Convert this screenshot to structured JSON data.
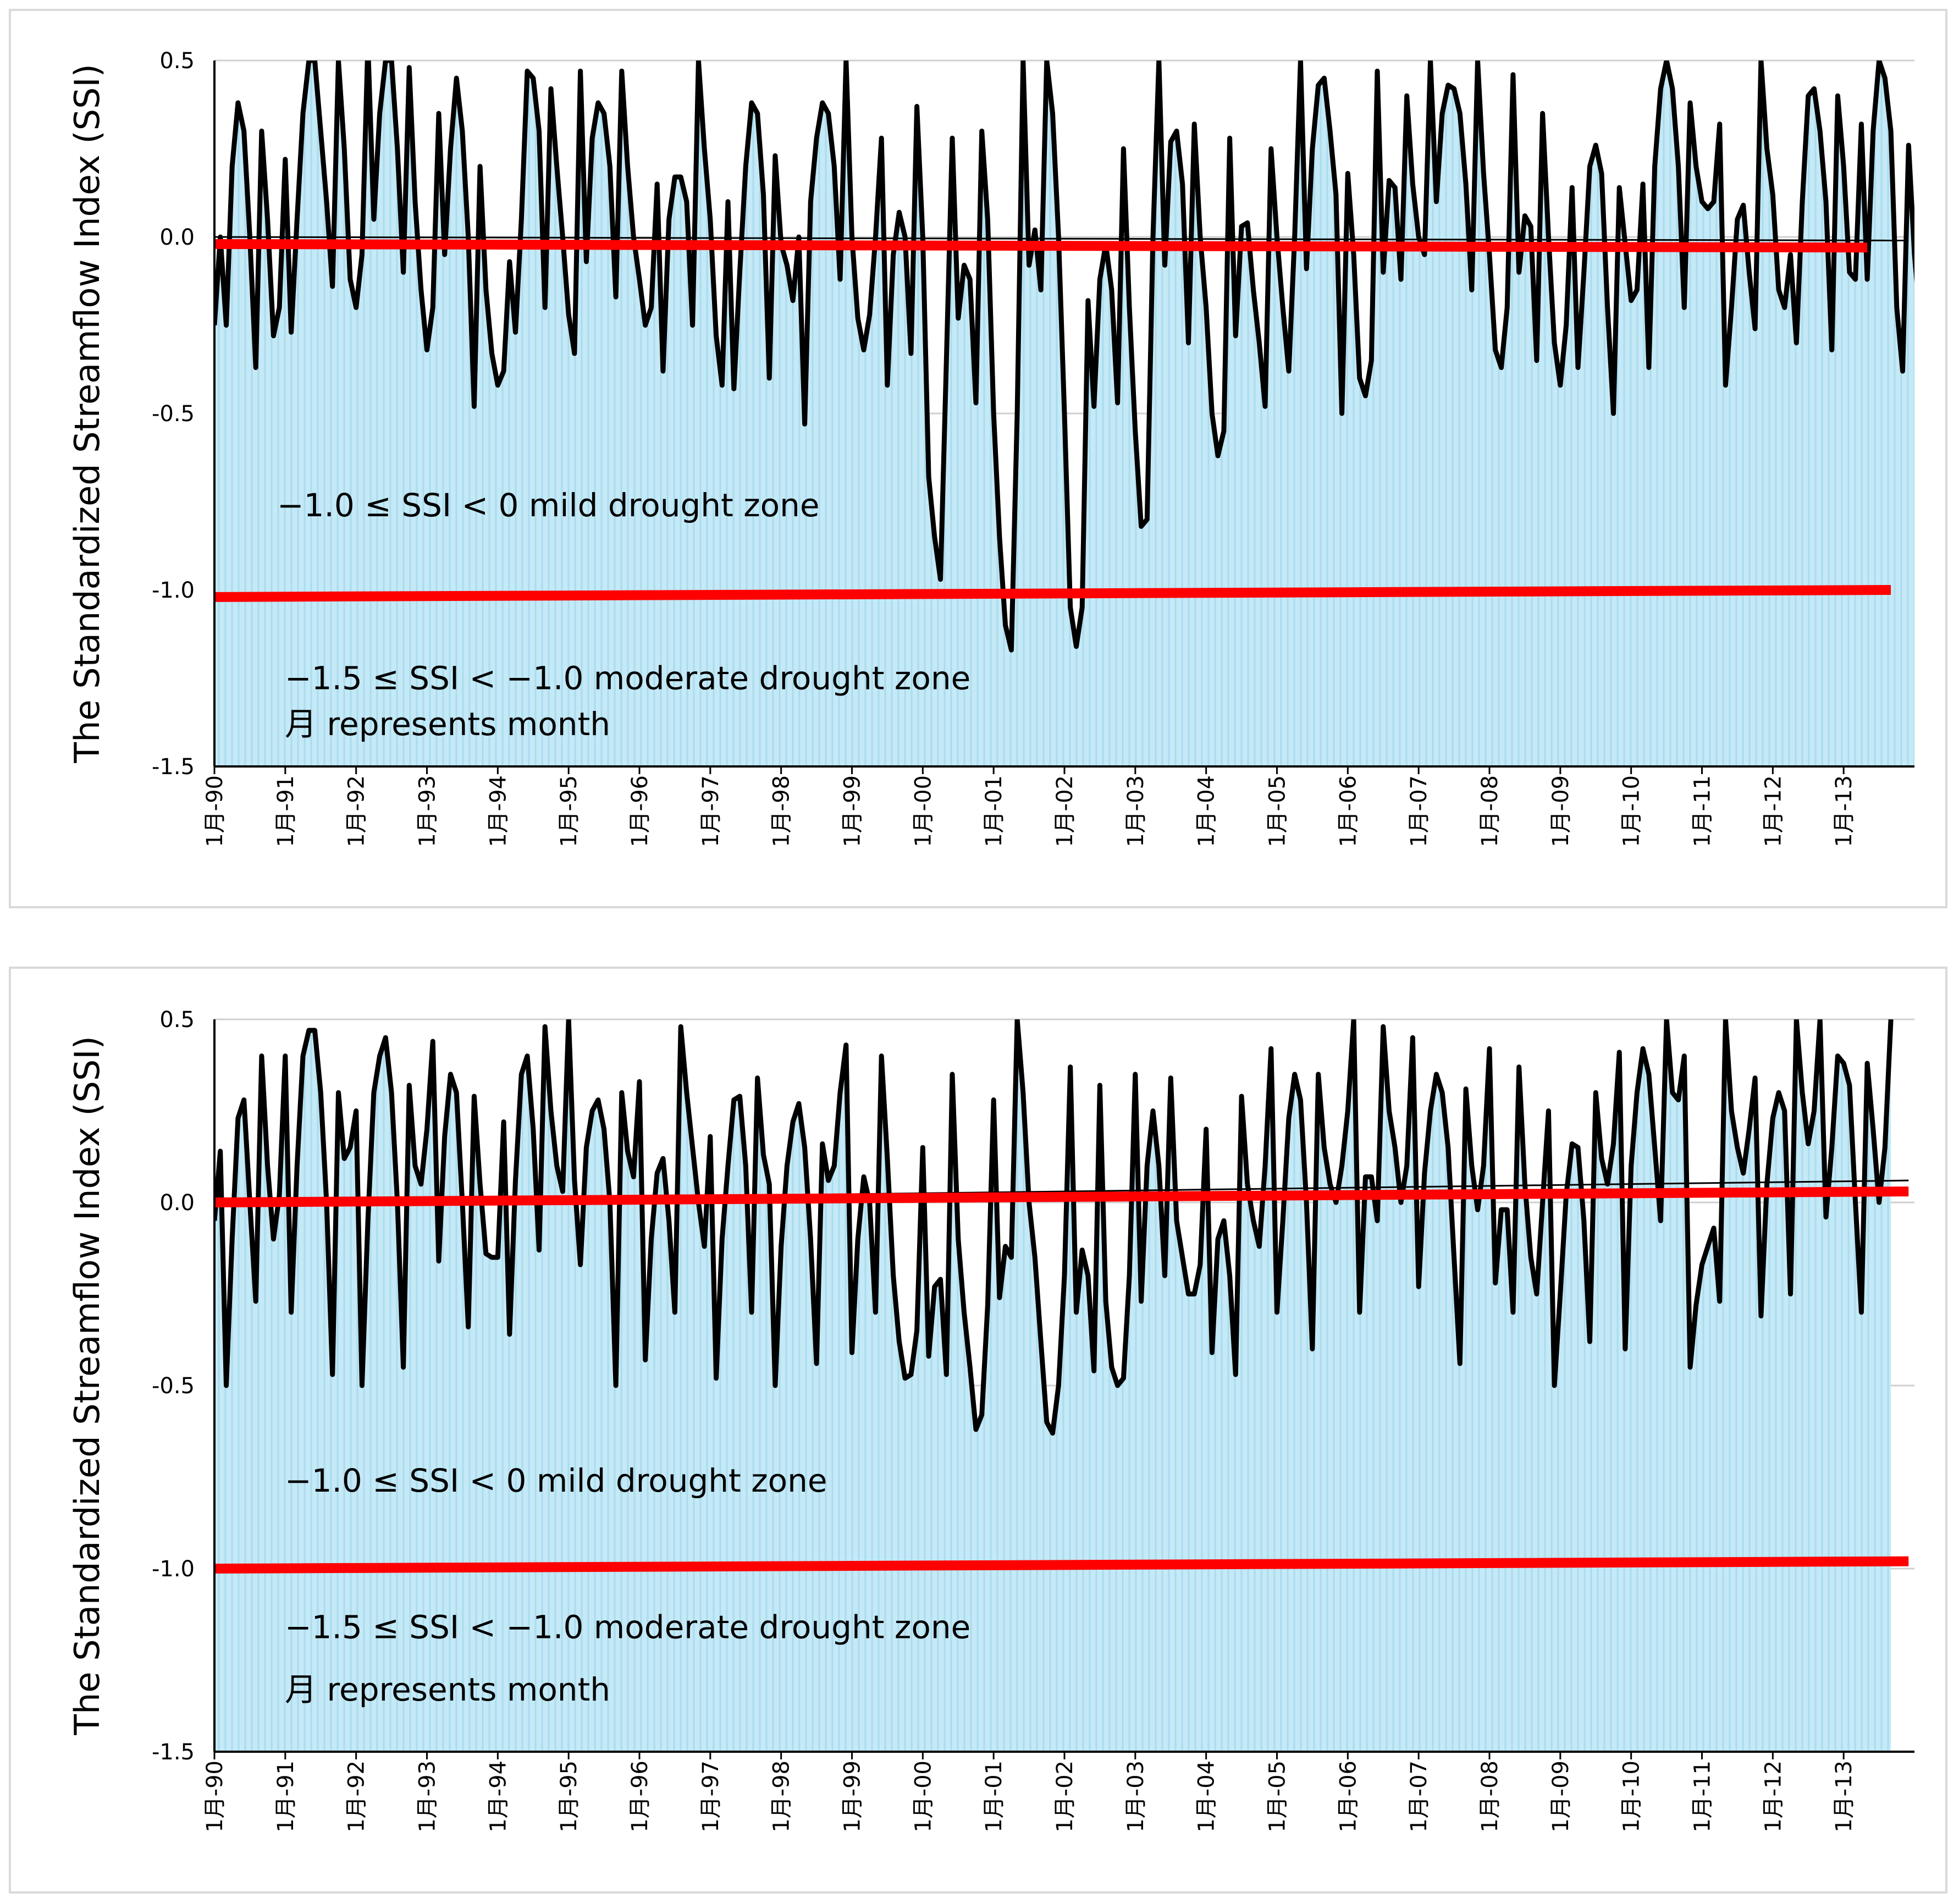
{
  "colors": {
    "area_fill": "#c5e9f6",
    "area_stripe": "#a9dcef",
    "grid": "#d0d0d0",
    "series_line": "#000000",
    "threshold_line": "#ff0000",
    "frame_border": "#d9d9d9"
  },
  "chart_data": [
    {
      "type": "line",
      "ylabel": "The Standardized Streamflow Index (SSI)",
      "xlabel": "",
      "ylim": [
        -1.5,
        0.5
      ],
      "yticks": [
        "0.5",
        "0.0",
        "-0.5",
        "-1.0",
        "-1.5"
      ],
      "x_start": "1990-01",
      "x_tick_labels": [
        "1月-90",
        "1月-91",
        "1月-92",
        "1月-93",
        "1月-94",
        "1月-95",
        "1月-96",
        "1月-97",
        "1月-98",
        "1月-99",
        "1月-00",
        "1月-01",
        "1月-02",
        "1月-03",
        "1月-04",
        "1月-05",
        "1月-06",
        "1月-07",
        "1月-08",
        "1月-09",
        "1月-10",
        "1月-11",
        "1月-12",
        "1月-13"
      ],
      "annotations": [
        {
          "text": "−1.0 ≤ SSI < 0 mild drought zone",
          "value": -0.76
        },
        {
          "text": "−1.5 ≤ SSI < −1.0 moderate drought zone",
          "value": -1.25
        },
        {
          "text": "月  represents month",
          "value": -1.38
        }
      ],
      "thresholds": [
        {
          "name": "",
          "start": "1990-01",
          "end": "2013-05",
          "values": [
            -0.02,
            -0.03
          ]
        },
        {
          "name": "",
          "start": "1990-01",
          "end": "2013-09",
          "values": [
            -1.02,
            -1.0
          ]
        }
      ],
      "trend": {
        "start": "1990-01",
        "end": "2013-12",
        "values": [
          0.0,
          -0.01
        ]
      },
      "series": [
        {
          "name": "",
          "values": [
            -0.25,
            0.0,
            -0.25,
            0.2,
            0.38,
            0.3,
            0.0,
            -0.37,
            0.3,
            0.05,
            -0.28,
            -0.2,
            0.22,
            -0.27,
            0.05,
            0.35,
            0.5,
            0.5,
            0.3,
            0.1,
            -0.14,
            0.5,
            0.25,
            -0.12,
            -0.2,
            -0.05,
            0.55,
            0.05,
            0.35,
            0.5,
            0.5,
            0.25,
            -0.1,
            0.48,
            0.1,
            -0.15,
            -0.32,
            -0.2,
            0.35,
            -0.05,
            0.25,
            0.45,
            0.3,
            0.0,
            -0.48,
            0.2,
            -0.15,
            -0.33,
            -0.42,
            -0.38,
            -0.07,
            -0.27,
            0.05,
            0.47,
            0.45,
            0.3,
            -0.2,
            0.42,
            0.2,
            0.0,
            -0.22,
            -0.33,
            0.47,
            -0.07,
            0.28,
            0.38,
            0.35,
            0.2,
            -0.17,
            0.47,
            0.2,
            0.0,
            -0.12,
            -0.25,
            -0.2,
            0.15,
            -0.38,
            0.05,
            0.17,
            0.17,
            0.1,
            -0.25,
            0.5,
            0.25,
            0.05,
            -0.28,
            -0.42,
            0.1,
            -0.43,
            -0.1,
            0.2,
            0.38,
            0.35,
            0.12,
            -0.4,
            0.23,
            -0.02,
            -0.08,
            -0.18,
            0.0,
            -0.53,
            0.1,
            0.28,
            0.38,
            0.35,
            0.2,
            -0.12,
            0.5,
            0.0,
            -0.23,
            -0.32,
            -0.22,
            0.0,
            0.28,
            -0.42,
            -0.05,
            0.07,
            0.0,
            -0.33,
            0.37,
            0.0,
            -0.68,
            -0.85,
            -0.97,
            -0.35,
            0.28,
            -0.23,
            -0.08,
            -0.12,
            -0.47,
            0.3,
            0.05,
            -0.5,
            -0.85,
            -1.1,
            -1.17,
            -0.5,
            0.5,
            -0.08,
            0.02,
            -0.15,
            0.5,
            0.35,
            0.0,
            -0.5,
            -1.05,
            -1.16,
            -1.05,
            -0.18,
            -0.48,
            -0.12,
            -0.02,
            -0.15,
            -0.47,
            0.25,
            -0.2,
            -0.55,
            -0.82,
            -0.8,
            0.0,
            0.5,
            -0.08,
            0.27,
            0.3,
            0.15,
            -0.3,
            0.32,
            0.0,
            -0.2,
            -0.5,
            -0.62,
            -0.55,
            0.28,
            -0.28,
            0.03,
            0.04,
            -0.15,
            -0.3,
            -0.48,
            0.25,
            0.0,
            -0.2,
            -0.38,
            0.0,
            0.5,
            -0.09,
            0.25,
            0.43,
            0.45,
            0.3,
            0.12,
            -0.5,
            0.18,
            -0.05,
            -0.4,
            -0.45,
            -0.35,
            0.47,
            -0.1,
            0.16,
            0.14,
            -0.12,
            0.4,
            0.15,
            0.0,
            -0.05,
            0.5,
            0.1,
            0.35,
            0.43,
            0.42,
            0.35,
            0.15,
            -0.15,
            0.5,
            0.18,
            -0.05,
            -0.32,
            -0.37,
            -0.2,
            0.46,
            -0.1,
            0.06,
            0.03,
            -0.35,
            0.35,
            0.0,
            -0.3,
            -0.42,
            -0.25,
            0.14,
            -0.37,
            -0.1,
            0.2,
            0.26,
            0.18,
            -0.2,
            -0.5,
            0.14,
            -0.02,
            -0.18,
            -0.15,
            0.15,
            -0.37,
            0.2,
            0.42,
            0.5,
            0.42,
            0.2,
            -0.2,
            0.38,
            0.2,
            0.1,
            0.08,
            0.1,
            0.32,
            -0.42,
            -0.2,
            0.05,
            0.09,
            -0.1,
            -0.26,
            0.5,
            0.25,
            0.12,
            -0.15,
            -0.2,
            -0.05,
            -0.3,
            0.1,
            0.4,
            0.42,
            0.3,
            0.1,
            -0.32,
            0.4,
            0.2,
            -0.1,
            -0.12,
            0.32,
            -0.12,
            0.3,
            0.5,
            0.45,
            0.3,
            -0.2,
            -0.38,
            0.26,
            -0.05,
            -0.24,
            -0.2,
            0.35
          ]
        }
      ]
    },
    {
      "type": "line",
      "ylabel": "The Standardized Streamflow Index (SSI)",
      "xlabel": "",
      "ylim": [
        -1.5,
        0.5
      ],
      "yticks": [
        "0.5",
        "0.0",
        "-0.5",
        "-1.0",
        "-1.5"
      ],
      "x_start": "1990-01",
      "x_tick_labels": [
        "1月-90",
        "1月-91",
        "1月-92",
        "1月-93",
        "1月-94",
        "1月-95",
        "1月-96",
        "1月-97",
        "1月-98",
        "1月-99",
        "1月-00",
        "1月-01",
        "1月-02",
        "1月-03",
        "1月-04",
        "1月-05",
        "1月-06",
        "1月-07",
        "1月-08",
        "1月-09",
        "1月-10",
        "1月-11",
        "1月-12",
        "1月-13"
      ],
      "annotations": [
        {
          "text": "−1.0 ≤ SSI < 0 mild drought zone",
          "value": -0.76
        },
        {
          "text": "−1.5 ≤ SSI < −1.0 moderate drought zone",
          "value": -1.16
        },
        {
          "text": "月 represents month",
          "value": -1.33
        }
      ],
      "thresholds": [
        {
          "name": "",
          "start": "1990-01",
          "end": "2013-12",
          "values": [
            0.0,
            0.03
          ]
        },
        {
          "name": "",
          "start": "1990-01",
          "end": "2013-12",
          "values": [
            -1.0,
            -0.98
          ]
        }
      ],
      "trend": {
        "start": "1990-01",
        "end": "2013-12",
        "values": [
          0.0,
          0.06
        ]
      },
      "series": [
        {
          "name": "",
          "values": [
            -0.05,
            0.14,
            -0.5,
            -0.1,
            0.23,
            0.28,
            0.0,
            -0.27,
            0.4,
            0.1,
            -0.1,
            0.02,
            0.4,
            -0.3,
            0.1,
            0.4,
            0.47,
            0.47,
            0.3,
            0.0,
            -0.47,
            0.3,
            0.12,
            0.15,
            0.25,
            -0.5,
            -0.05,
            0.3,
            0.4,
            0.45,
            0.3,
            0.0,
            -0.45,
            0.32,
            0.1,
            0.05,
            0.2,
            0.44,
            -0.16,
            0.18,
            0.35,
            0.3,
            0.0,
            -0.34,
            0.29,
            0.05,
            -0.14,
            -0.15,
            -0.15,
            0.22,
            -0.36,
            0.06,
            0.35,
            0.4,
            0.2,
            -0.13,
            0.48,
            0.25,
            0.1,
            0.03,
            0.5,
            0.06,
            -0.17,
            0.15,
            0.25,
            0.28,
            0.2,
            0.0,
            -0.5,
            0.3,
            0.14,
            0.07,
            0.33,
            -0.43,
            -0.1,
            0.08,
            0.12,
            -0.05,
            -0.3,
            0.48,
            0.3,
            0.15,
            0.0,
            -0.12,
            0.18,
            -0.48,
            -0.1,
            0.1,
            0.28,
            0.29,
            0.1,
            -0.3,
            0.34,
            0.13,
            0.05,
            -0.5,
            -0.12,
            0.1,
            0.22,
            0.27,
            0.15,
            -0.1,
            -0.44,
            0.16,
            0.06,
            0.1,
            0.3,
            0.43,
            -0.41,
            -0.1,
            0.07,
            0.0,
            -0.3,
            0.4,
            0.12,
            -0.2,
            -0.38,
            -0.48,
            -0.47,
            -0.35,
            0.15,
            -0.42,
            -0.23,
            -0.21,
            -0.47,
            0.35,
            -0.1,
            -0.3,
            -0.45,
            -0.62,
            -0.58,
            -0.28,
            0.28,
            -0.26,
            -0.12,
            -0.15,
            0.5,
            0.3,
            0.0,
            -0.15,
            -0.38,
            -0.6,
            -0.63,
            -0.5,
            -0.2,
            0.37,
            -0.3,
            -0.13,
            -0.2,
            -0.46,
            0.32,
            -0.27,
            -0.45,
            -0.5,
            -0.48,
            -0.2,
            0.35,
            -0.27,
            0.1,
            0.25,
            0.1,
            -0.2,
            0.34,
            -0.05,
            -0.15,
            -0.25,
            -0.25,
            -0.17,
            0.2,
            -0.41,
            -0.1,
            -0.05,
            -0.2,
            -0.47,
            0.29,
            0.05,
            -0.05,
            -0.12,
            0.1,
            0.42,
            -0.3,
            -0.05,
            0.23,
            0.35,
            0.28,
            0.0,
            -0.4,
            0.35,
            0.15,
            0.05,
            0.0,
            0.1,
            0.25,
            0.5,
            -0.3,
            0.07,
            0.07,
            -0.05,
            0.48,
            0.25,
            0.15,
            0.0,
            0.1,
            0.45,
            -0.23,
            0.08,
            0.25,
            0.35,
            0.3,
            0.15,
            -0.15,
            -0.44,
            0.31,
            0.1,
            -0.02,
            0.1,
            0.42,
            -0.22,
            -0.02,
            -0.02,
            -0.3,
            0.37,
            0.05,
            -0.15,
            -0.25,
            0.0,
            0.25,
            -0.5,
            -0.25,
            0.02,
            0.16,
            0.15,
            -0.05,
            -0.38,
            0.3,
            0.12,
            0.05,
            0.16,
            0.41,
            -0.4,
            0.1,
            0.3,
            0.42,
            0.35,
            0.15,
            -0.05,
            0.5,
            0.3,
            0.28,
            0.4,
            -0.45,
            -0.28,
            -0.17,
            -0.12,
            -0.07,
            -0.27,
            0.5,
            0.25,
            0.15,
            0.08,
            0.2,
            0.34,
            -0.31,
            0.05,
            0.23,
            0.3,
            0.25,
            -0.25,
            0.5,
            0.3,
            0.16,
            0.25,
            0.5,
            -0.04,
            0.15,
            0.4,
            0.38,
            0.32,
            0.0,
            -0.3,
            0.38,
            0.2,
            0.0,
            0.15,
            0.5
          ]
        }
      ]
    }
  ]
}
